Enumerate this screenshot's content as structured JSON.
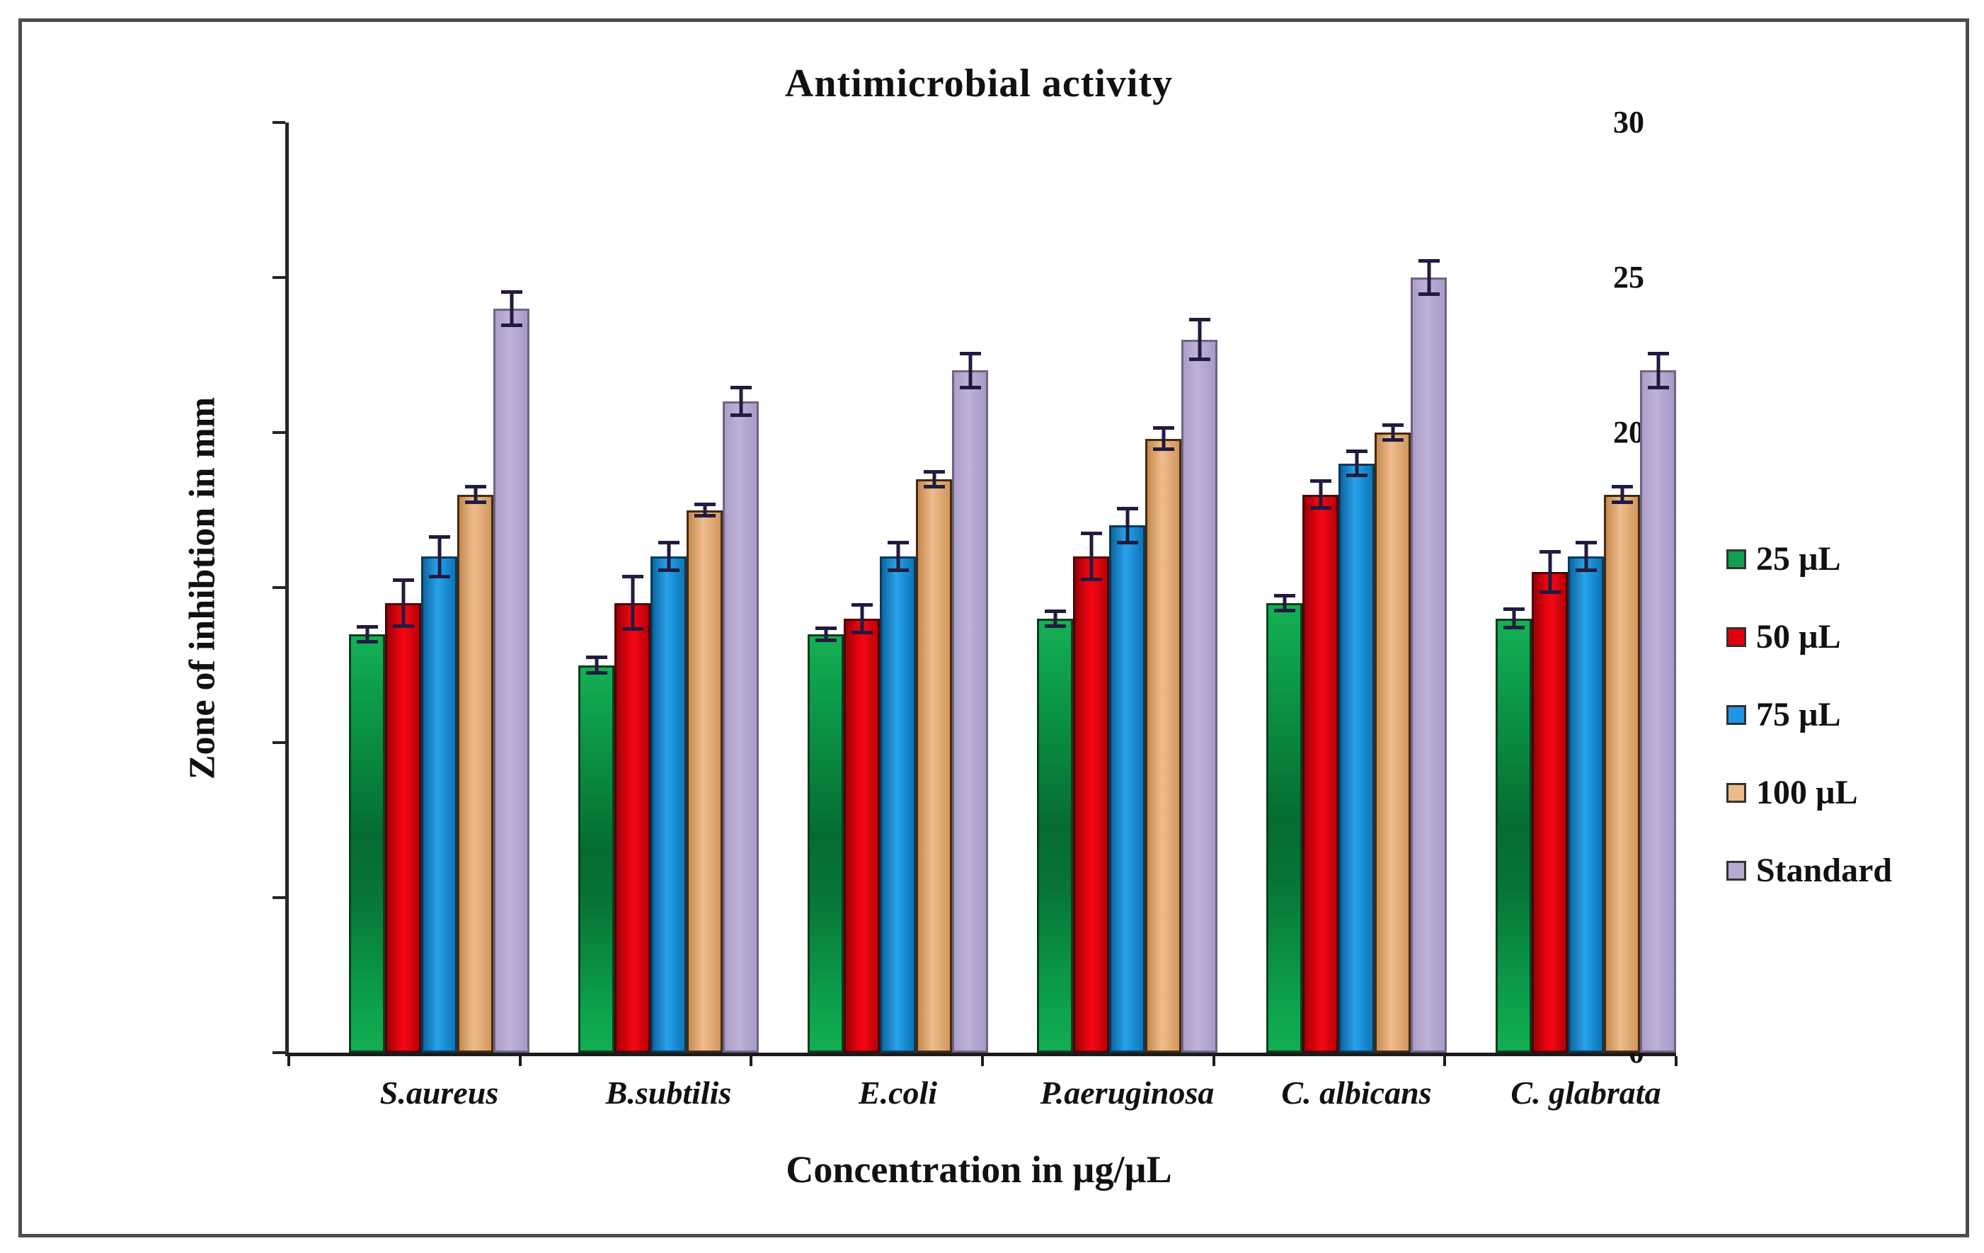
{
  "figure": {
    "title": "Antimicrobial activity",
    "x_axis_label": "Concentration in µg/µL",
    "y_axis_label": "Zone of inhibtion in mm"
  },
  "chart_data": {
    "type": "bar",
    "title": "Antimicrobial activity",
    "xlabel": "Concentration in µg/µL",
    "ylabel": "Zone of inhibtion in mm",
    "ylim": [
      0,
      30
    ],
    "y_ticks": [
      0,
      5,
      10,
      15,
      20,
      25,
      30
    ],
    "grid": false,
    "legend_position": "right",
    "error_bars": true,
    "categories": [
      "S.aureus",
      "B.subtilis",
      "E.coli",
      "P.aeruginosa",
      "C. albicans",
      "C. glabrata"
    ],
    "series": [
      {
        "name": "25 µL",
        "color": "#11A04D",
        "values": [
          13.5,
          12.5,
          13.5,
          14.0,
          14.5,
          14.0
        ],
        "errors": [
          0.3,
          0.3,
          0.25,
          0.3,
          0.3,
          0.35
        ]
      },
      {
        "name": "50 µL",
        "color": "#E3000E",
        "values": [
          14.5,
          14.5,
          14.0,
          16.0,
          18.0,
          15.5
        ],
        "errors": [
          0.8,
          0.9,
          0.5,
          0.8,
          0.5,
          0.7
        ]
      },
      {
        "name": "75 µL",
        "color": "#1E96E6",
        "values": [
          16.0,
          16.0,
          16.0,
          17.0,
          19.0,
          16.0
        ],
        "errors": [
          0.7,
          0.5,
          0.5,
          0.6,
          0.45,
          0.5
        ]
      },
      {
        "name": "100 µL",
        "color": "#ECBA88",
        "values": [
          18.0,
          17.5,
          18.5,
          19.8,
          20.0,
          18.0
        ],
        "errors": [
          0.3,
          0.25,
          0.3,
          0.4,
          0.3,
          0.3
        ]
      },
      {
        "name": "Standard",
        "color": "#B7AAD3",
        "values": [
          24.0,
          21.0,
          22.0,
          23.0,
          25.0,
          22.0
        ],
        "errors": [
          0.6,
          0.5,
          0.6,
          0.7,
          0.6,
          0.6
        ]
      }
    ]
  }
}
